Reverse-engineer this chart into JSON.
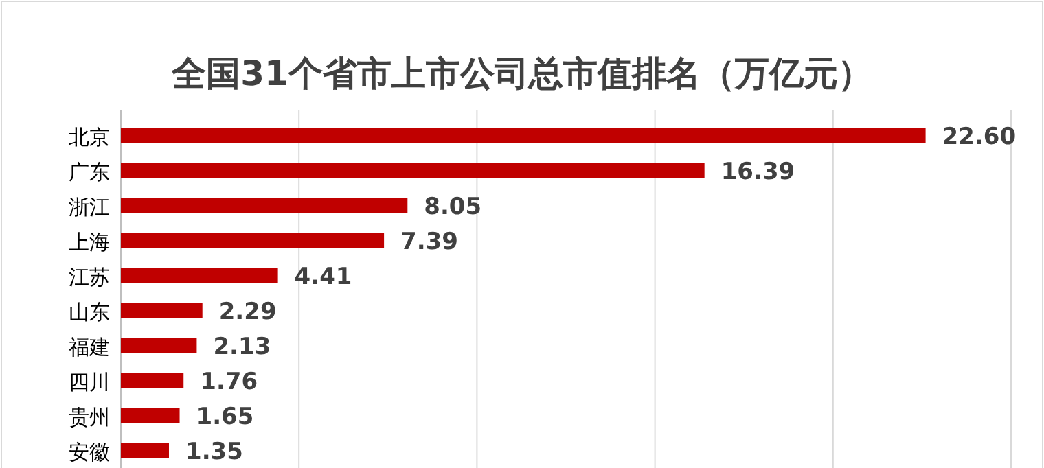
{
  "chart_data": {
    "type": "bar",
    "orientation": "horizontal",
    "title": "全国31个省市上市公司总市值排名（万亿元）",
    "categories": [
      "北京",
      "广东",
      "浙江",
      "上海",
      "江苏",
      "山东",
      "福建",
      "四川",
      "贵州",
      "安徽"
    ],
    "values": [
      22.6,
      16.39,
      8.05,
      7.39,
      4.41,
      2.29,
      2.13,
      1.76,
      1.65,
      1.35
    ],
    "value_labels": [
      "22.60",
      "16.39",
      "8.05",
      "7.39",
      "4.41",
      "2.29",
      "2.13",
      "1.76",
      "1.65",
      "1.35"
    ],
    "color": "#c00000",
    "xlim": [
      0,
      25
    ],
    "xticks": [
      {
        "value": 0,
        "label": null
      },
      {
        "value": 5,
        "label": null
      },
      {
        "value": 10,
        "label": null
      },
      {
        "value": 15,
        "label": null
      },
      {
        "value": 20,
        "label": null
      },
      {
        "value": 25,
        "label": null
      }
    ],
    "grid": "x",
    "tick_labels": "y"
  }
}
